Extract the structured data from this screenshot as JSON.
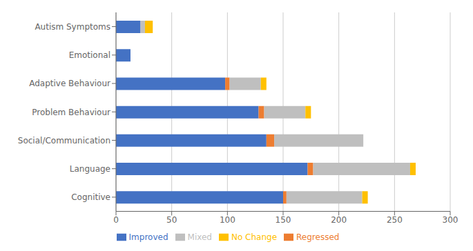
{
  "chart_data": {
    "type": "bar",
    "orientation": "horizontal",
    "stacked": true,
    "categories": [
      "Cognitive",
      "Language",
      "Social/Communication",
      "Problem Behaviour",
      "Adaptive Behaviour",
      "Emotional",
      "Autism Symptoms"
    ],
    "series": [
      {
        "name": "Improved",
        "color": "#4472C4",
        "values": [
          150,
          172,
          135,
          128,
          98,
          13,
          22
        ]
      },
      {
        "name": "Regressed",
        "color": "#ED7D31",
        "values": [
          3,
          5,
          7,
          5,
          4,
          0,
          0
        ]
      },
      {
        "name": "Mixed",
        "color": "#BFBFBF",
        "values": [
          68,
          87,
          80,
          37,
          28,
          0,
          4
        ]
      },
      {
        "name": "No Change",
        "color": "#FFC000",
        "values": [
          5,
          5,
          0,
          5,
          5,
          0,
          7
        ]
      }
    ],
    "xlim": [
      0,
      300
    ],
    "xticks": [
      0,
      50,
      100,
      150,
      200,
      250,
      300
    ],
    "grid": true,
    "legend": "bottom"
  }
}
